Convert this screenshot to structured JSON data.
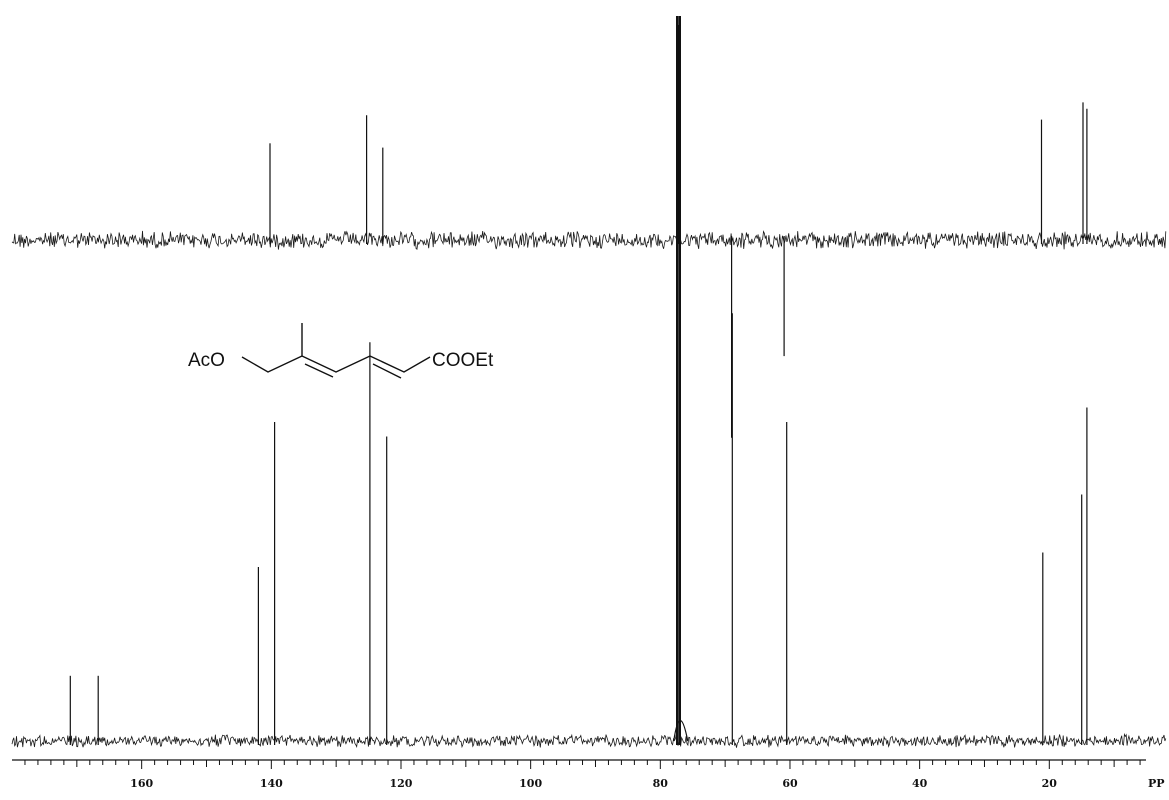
{
  "chart_data": {
    "type": "line",
    "xlabel": "",
    "x_unit_label": "PP",
    "xlim": [
      180,
      2
    ],
    "x_reversed": true,
    "xticks": [
      160,
      140,
      120,
      100,
      80,
      60,
      40,
      20
    ],
    "grid": false,
    "series": [
      {
        "role": "upper-trace",
        "baseline_noise": "high",
        "peaks": [
          {
            "ppm": 140.2,
            "intensity": 0.45
          },
          {
            "ppm": 125.3,
            "intensity": 0.58
          },
          {
            "ppm": 122.8,
            "intensity": 0.43
          },
          {
            "ppm": 77.3,
            "intensity": 1.0
          },
          {
            "ppm": 69.0,
            "intensity": -0.92
          },
          {
            "ppm": 60.9,
            "intensity": -0.54
          },
          {
            "ppm": 21.2,
            "intensity": 0.56
          },
          {
            "ppm": 14.8,
            "intensity": 0.64
          },
          {
            "ppm": 14.2,
            "intensity": 0.61
          }
        ]
      },
      {
        "role": "lower-trace",
        "baseline_noise": "low",
        "peaks": [
          {
            "ppm": 171.0,
            "intensity": 0.09
          },
          {
            "ppm": 166.7,
            "intensity": 0.09
          },
          {
            "ppm": 142.0,
            "intensity": 0.24
          },
          {
            "ppm": 139.5,
            "intensity": 0.44
          },
          {
            "ppm": 124.8,
            "intensity": 0.55
          },
          {
            "ppm": 122.2,
            "intensity": 0.42
          },
          {
            "ppm": 77.4,
            "intensity": 1.0
          },
          {
            "ppm": 77.0,
            "intensity": 1.0
          },
          {
            "ppm": 68.9,
            "intensity": 0.59
          },
          {
            "ppm": 60.5,
            "intensity": 0.44
          },
          {
            "ppm": 21.0,
            "intensity": 0.26
          },
          {
            "ppm": 15.0,
            "intensity": 0.34
          },
          {
            "ppm": 14.2,
            "intensity": 0.46
          }
        ]
      }
    ]
  },
  "structure": {
    "left_label": "AcO",
    "right_label": "COOEt"
  }
}
